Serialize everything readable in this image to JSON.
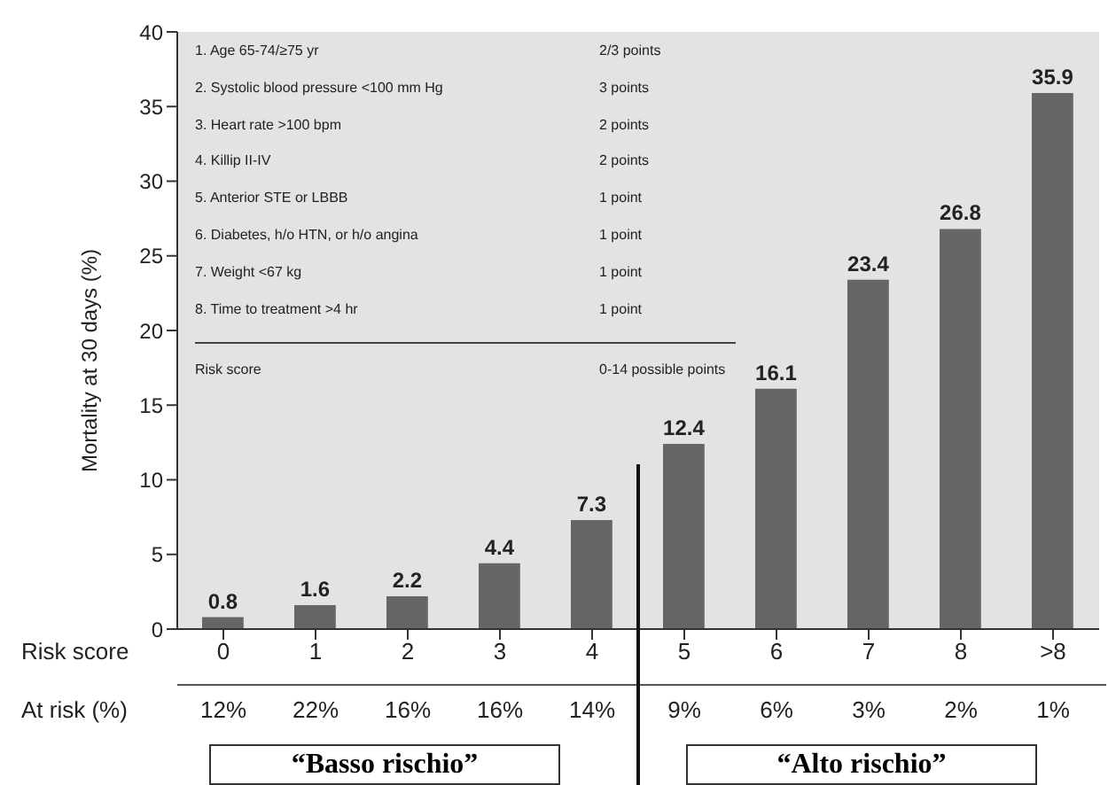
{
  "chart_data": {
    "type": "bar",
    "ylabel": "Mortality at 30 days (%)",
    "xlabel": "Risk score",
    "categories": [
      "0",
      "1",
      "2",
      "3",
      "4",
      "5",
      "6",
      "7",
      "8",
      ">8"
    ],
    "values": [
      0.8,
      1.6,
      2.2,
      4.4,
      7.3,
      12.4,
      16.1,
      23.4,
      26.8,
      35.9
    ],
    "color": "#666666",
    "data_labels": true,
    "ylim": [
      0,
      40
    ],
    "yticks": [
      0,
      5,
      10,
      15,
      20,
      25,
      30,
      35,
      40
    ],
    "grid": false,
    "legend": false,
    "annotations": [
      "1. Age 65-74/≥75 yr",
      "2/3 points",
      "2. Systolic blood pressure <100 mm Hg",
      "3 points",
      "3. Heart rate >100 bpm",
      "2 points",
      "4. Killip II-IV",
      "2 points",
      "5. Anterior STE or LBBB",
      "1 point",
      "6. Diabetes, h/o HTN, or h/o angina",
      "1 point",
      "7. Weight <67 kg",
      "1 point",
      "8. Time to treatment >4 hr",
      "1 point",
      "Risk score",
      "0-14 possible points",
      "At risk (%)",
      "12%",
      "22%",
      "16%",
      "16%",
      "14%",
      "9%",
      "6%",
      "3%",
      "2%",
      "1%",
      "“Basso rischio”",
      "“Alto rischio”"
    ]
  }
}
